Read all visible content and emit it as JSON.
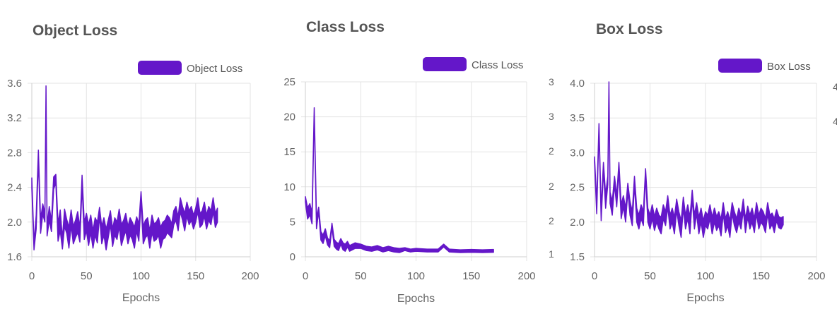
{
  "charts": [
    {
      "id": "object-loss",
      "title": "Object Loss",
      "chart_data": {
        "type": "line",
        "title": "Object Loss",
        "xlabel": "Epochs",
        "ylabel": "",
        "xlim": [
          0,
          200
        ],
        "ylim": [
          1.6,
          3.6
        ],
        "xticks": [
          "0",
          "50",
          "100",
          "150",
          "200"
        ],
        "yticks": [
          "1.6",
          "2.0",
          "2.4",
          "2.8",
          "3.2",
          "3.6"
        ],
        "grid": true,
        "legend": "top-right",
        "series": [
          {
            "name": "Object Loss",
            "color": "#6417c9",
            "x": [
              0,
              2,
              4,
              6,
              8,
              10,
              12,
              13,
              14,
              16,
              18,
              20,
              22,
              24,
              26,
              28,
              30,
              32,
              34,
              36,
              38,
              40,
              42,
              44,
              46,
              48,
              50,
              52,
              54,
              56,
              58,
              60,
              62,
              64,
              66,
              68,
              70,
              72,
              74,
              76,
              78,
              80,
              82,
              84,
              86,
              88,
              90,
              92,
              94,
              96,
              98,
              100,
              102,
              104,
              106,
              108,
              110,
              112,
              114,
              116,
              118,
              120,
              122,
              124,
              126,
              128,
              130,
              132,
              134,
              136,
              138,
              140,
              142,
              144,
              146,
              148,
              150,
              152,
              154,
              156,
              158,
              160,
              162,
              164,
              166,
              168,
              170
            ],
            "y": [
              2.45,
              1.72,
              2.0,
              2.78,
              1.95,
              2.15,
              2.05,
              3.52,
              1.9,
              2.1,
              1.95,
              2.45,
              2.5,
              1.88,
              2.02,
              1.75,
              2.05,
              1.95,
              1.82,
              2.05,
              1.85,
              1.92,
              2.0,
              1.85,
              2.48,
              1.9,
              2.0,
              1.85,
              1.98,
              1.8,
              1.95,
              1.88,
              2.12,
              1.85,
              1.95,
              1.8,
              1.92,
              2.05,
              1.82,
              1.95,
              1.9,
              2.05,
              1.85,
              1.92,
              2.0,
              1.85,
              1.95,
              1.9,
              1.82,
              1.98,
              1.88,
              2.3,
              1.85,
              1.92,
              1.95,
              1.8,
              1.98,
              1.88,
              1.9,
              1.95,
              1.82,
              1.9,
              1.92,
              1.98,
              1.95,
              1.9,
              2.05,
              2.1,
              1.98,
              2.2,
              2.1,
              2.0,
              2.15,
              2.05,
              2.1,
              2.0,
              2.08,
              2.2,
              2.02,
              2.05,
              2.15,
              2.0,
              2.1,
              2.05,
              2.2,
              2.02,
              2.08
            ],
            "band": [
              0.06,
              0.04,
              0.08,
              0.05,
              0.08,
              0.06,
              0.05,
              0.05,
              0.06,
              0.08,
              0.06,
              0.07,
              0.05,
              0.1,
              0.12,
              0.06,
              0.1,
              0.08,
              0.12,
              0.09,
              0.1,
              0.1,
              0.12,
              0.08,
              0.06,
              0.1,
              0.1,
              0.12,
              0.1,
              0.1,
              0.1,
              0.12,
              0.05,
              0.1,
              0.1,
              0.12,
              0.1,
              0.08,
              0.1,
              0.1,
              0.1,
              0.1,
              0.12,
              0.1,
              0.1,
              0.1,
              0.1,
              0.1,
              0.12,
              0.08,
              0.1,
              0.05,
              0.1,
              0.1,
              0.1,
              0.1,
              0.1,
              0.1,
              0.1,
              0.1,
              0.12,
              0.1,
              0.1,
              0.1,
              0.1,
              0.08,
              0.08,
              0.08,
              0.08,
              0.08,
              0.08,
              0.1,
              0.08,
              0.08,
              0.08,
              0.08,
              0.08,
              0.08,
              0.08,
              0.08,
              0.08,
              0.08,
              0.08,
              0.08,
              0.08,
              0.08,
              0.08
            ]
          }
        ]
      }
    },
    {
      "id": "class-loss",
      "title": "Class Loss",
      "chart_data": {
        "type": "line",
        "title": "Class Loss",
        "xlabel": "Epochs",
        "ylabel": "",
        "xlim": [
          0,
          200
        ],
        "ylim": [
          0,
          25
        ],
        "xticks": [
          "0",
          "50",
          "100",
          "150",
          "200"
        ],
        "yticks": [
          "0",
          "5",
          "10",
          "15",
          "20",
          "25"
        ],
        "grid": true,
        "legend": "top-right",
        "series": [
          {
            "name": "Class Loss",
            "color": "#6417c9",
            "x": [
              0,
              2,
              4,
              6,
              8,
              10,
              12,
              14,
              16,
              18,
              20,
              22,
              24,
              26,
              28,
              30,
              32,
              34,
              36,
              38,
              40,
              45,
              50,
              55,
              60,
              65,
              70,
              75,
              80,
              85,
              90,
              95,
              100,
              110,
              120,
              125,
              130,
              140,
              150,
              160,
              170
            ],
            "y": [
              8.2,
              6.2,
              6.8,
              5.5,
              21.0,
              4.8,
              6.8,
              3.0,
              2.5,
              3.5,
              2.2,
              1.8,
              4.5,
              2.0,
              1.6,
              1.4,
              2.2,
              1.5,
              1.3,
              1.8,
              1.2,
              1.6,
              1.5,
              1.2,
              1.1,
              1.3,
              1.0,
              1.2,
              1.0,
              0.9,
              1.1,
              0.9,
              1.0,
              0.9,
              0.9,
              1.6,
              0.9,
              0.8,
              0.85,
              0.8,
              0.85
            ],
            "band": [
              0.4,
              0.8,
              0.8,
              0.8,
              0.3,
              0.8,
              0.3,
              0.6,
              0.6,
              0.5,
              0.5,
              0.5,
              0.3,
              0.5,
              0.5,
              0.5,
              0.4,
              0.5,
              0.5,
              0.4,
              0.4,
              0.4,
              0.3,
              0.3,
              0.3,
              0.3,
              0.3,
              0.3,
              0.3,
              0.3,
              0.2,
              0.2,
              0.2,
              0.2,
              0.2,
              0.2,
              0.2,
              0.2,
              0.2,
              0.2,
              0.2
            ]
          }
        ]
      }
    },
    {
      "id": "box-loss",
      "title": "Box Loss",
      "chart_data": {
        "type": "line",
        "title": "Box Loss",
        "xlabel": "Epochs",
        "ylabel": "",
        "xlim": [
          0,
          200
        ],
        "ylim": [
          1.5,
          4.0
        ],
        "xticks": [
          "0",
          "50",
          "100",
          "150",
          "200"
        ],
        "yticks": [
          "1.5",
          "2.0",
          "2.5",
          "3.0",
          "3.5",
          "4.0"
        ],
        "grid": true,
        "legend": "top-right",
        "series": [
          {
            "name": "Box Loss",
            "color": "#6417c9",
            "x": [
              0,
              2,
              4,
              6,
              8,
              10,
              12,
              13,
              14,
              16,
              18,
              20,
              22,
              24,
              26,
              28,
              30,
              32,
              34,
              36,
              38,
              40,
              42,
              44,
              46,
              48,
              50,
              52,
              54,
              56,
              58,
              60,
              62,
              64,
              66,
              68,
              70,
              72,
              74,
              76,
              78,
              80,
              82,
              84,
              86,
              88,
              90,
              92,
              94,
              96,
              98,
              100,
              102,
              104,
              106,
              108,
              110,
              112,
              114,
              116,
              118,
              120,
              122,
              124,
              126,
              128,
              130,
              132,
              134,
              136,
              138,
              140,
              142,
              144,
              146,
              148,
              150,
              152,
              154,
              156,
              158,
              160,
              162,
              164,
              166,
              168,
              170
            ],
            "y": [
              2.9,
              2.2,
              3.38,
              2.1,
              2.8,
              2.3,
              2.6,
              3.98,
              2.35,
              2.2,
              2.6,
              2.3,
              2.8,
              2.15,
              2.3,
              2.1,
              2.5,
              2.2,
              2.05,
              2.6,
              2.1,
              2.0,
              2.15,
              2.05,
              2.72,
              2.1,
              2.0,
              2.15,
              1.98,
              2.1,
              2.0,
              1.95,
              2.15,
              2.05,
              2.3,
              2.0,
              2.1,
              1.95,
              2.25,
              2.05,
              1.9,
              2.28,
              2.0,
              2.15,
              1.95,
              2.4,
              2.0,
              2.2,
              1.95,
              2.1,
              1.9,
              2.05,
              2.0,
              2.15,
              1.95,
              2.1,
              1.98,
              2.05,
              1.92,
              2.2,
              1.95,
              2.05,
              1.9,
              2.2,
              2.05,
              1.95,
              2.1,
              2.0,
              2.25,
              1.95,
              2.15,
              2.0,
              2.1,
              1.95,
              2.2,
              2.0,
              2.1,
              2.05,
              1.95,
              2.2,
              2.0,
              2.05,
              1.95,
              2.1,
              2.0,
              1.98,
              2.02
            ],
            "band": [
              0.04,
              0.08,
              0.04,
              0.08,
              0.06,
              0.1,
              0.06,
              0.04,
              0.08,
              0.1,
              0.06,
              0.08,
              0.06,
              0.1,
              0.08,
              0.1,
              0.06,
              0.1,
              0.1,
              0.06,
              0.1,
              0.1,
              0.1,
              0.1,
              0.05,
              0.1,
              0.1,
              0.1,
              0.1,
              0.1,
              0.1,
              0.12,
              0.1,
              0.1,
              0.08,
              0.1,
              0.1,
              0.12,
              0.08,
              0.1,
              0.12,
              0.08,
              0.1,
              0.1,
              0.12,
              0.06,
              0.1,
              0.08,
              0.12,
              0.1,
              0.12,
              0.1,
              0.1,
              0.1,
              0.12,
              0.1,
              0.1,
              0.1,
              0.12,
              0.08,
              0.1,
              0.1,
              0.12,
              0.08,
              0.1,
              0.1,
              0.1,
              0.1,
              0.08,
              0.1,
              0.08,
              0.1,
              0.1,
              0.1,
              0.08,
              0.1,
              0.1,
              0.1,
              0.1,
              0.08,
              0.1,
              0.08,
              0.1,
              0.08,
              0.08,
              0.08,
              0.06
            ]
          }
        ]
      }
    }
  ],
  "edge_fragments": {
    "left_of_box": [
      "3",
      "3",
      "2",
      "2",
      "2",
      "1"
    ],
    "right_of_box": [
      "4",
      "4"
    ]
  }
}
